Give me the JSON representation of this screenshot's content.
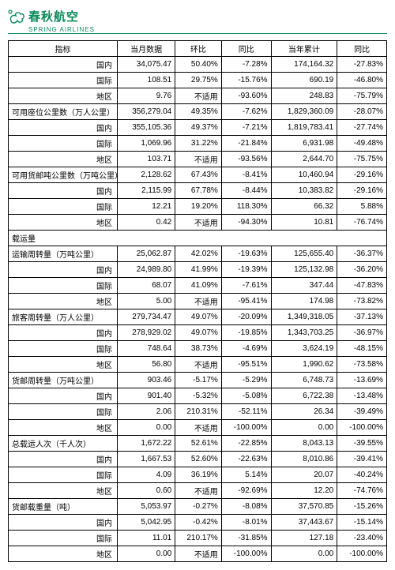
{
  "brand": {
    "cn": "春秋航空",
    "en": "SPRING AIRLINES",
    "color": "#0a8a5a"
  },
  "headers": [
    "指标",
    "当月数据",
    "环比",
    "同比",
    "当年累计",
    "同比"
  ],
  "na": "不适用",
  "subs": [
    "国内",
    "国际",
    "地区"
  ],
  "sections": [
    {
      "title": null,
      "rows": [
        {
          "sub": "国内",
          "v": [
            "34,075.47",
            "50.40%",
            "-7.28%",
            "174,164.32",
            "-27.83%"
          ]
        },
        {
          "sub": "国际",
          "v": [
            "108.51",
            "29.75%",
            "-15.76%",
            "690.19",
            "-46.80%"
          ]
        },
        {
          "sub": "地区",
          "v": [
            "9.76",
            "不适用",
            "-93.60%",
            "248.83",
            "-75.79%"
          ]
        }
      ]
    },
    {
      "title": "可用座位公里数（万人公里）",
      "titleRow": [
        "356,279.04",
        "49.35%",
        "-7.62%",
        "1,829,360.09",
        "-28.07%"
      ],
      "rows": [
        {
          "sub": "国内",
          "v": [
            "355,105.36",
            "49.37%",
            "-7.21%",
            "1,819,783.41",
            "-27.74%"
          ]
        },
        {
          "sub": "国际",
          "v": [
            "1,069.96",
            "31.22%",
            "-21.84%",
            "6,931.98",
            "-49.48%"
          ]
        },
        {
          "sub": "地区",
          "v": [
            "103.71",
            "不适用",
            "-93.56%",
            "2,644.70",
            "-75.75%"
          ]
        }
      ]
    },
    {
      "title": "可用货邮吨公里数（万吨公里）",
      "titleRow": [
        "2,128.62",
        "67.43%",
        "-8.41%",
        "10,460.94",
        "-29.16%"
      ],
      "rows": [
        {
          "sub": "国内",
          "v": [
            "2,115.99",
            "67.78%",
            "-8.44%",
            "10,383.82",
            "-29.16%"
          ]
        },
        {
          "sub": "国际",
          "v": [
            "12.21",
            "19.20%",
            "118.30%",
            "66.32",
            "5.88%"
          ]
        },
        {
          "sub": "地区",
          "v": [
            "0.42",
            "不适用",
            "-94.30%",
            "10.81",
            "-76.74%"
          ]
        }
      ]
    },
    {
      "title": "载运量",
      "blank": true
    },
    {
      "title": "运输周转量（万吨公里）",
      "titleRow": [
        "25,062.87",
        "42.02%",
        "-19.63%",
        "125,655.40",
        "-36.37%"
      ],
      "rows": [
        {
          "sub": "国内",
          "v": [
            "24,989.80",
            "41.99%",
            "-19.39%",
            "125,132.98",
            "-36.20%"
          ]
        },
        {
          "sub": "国际",
          "v": [
            "68.07",
            "41.09%",
            "-7.61%",
            "347.44",
            "-47.83%"
          ]
        },
        {
          "sub": "地区",
          "v": [
            "5.00",
            "不适用",
            "-95.41%",
            "174.98",
            "-73.82%"
          ]
        }
      ]
    },
    {
      "title": "旅客周转量（万人公里）",
      "titleRow": [
        "279,734.47",
        "49.07%",
        "-20.09%",
        "1,349,318.05",
        "-37.13%"
      ],
      "rows": [
        {
          "sub": "国内",
          "v": [
            "278,929.02",
            "49.07%",
            "-19.85%",
            "1,343,703.25",
            "-36.97%"
          ]
        },
        {
          "sub": "国际",
          "v": [
            "748.64",
            "38.73%",
            "-4.69%",
            "3,624.19",
            "-48.15%"
          ]
        },
        {
          "sub": "地区",
          "v": [
            "56.80",
            "不适用",
            "-95.51%",
            "1,990.62",
            "-73.58%"
          ]
        }
      ]
    },
    {
      "title": "货邮周转量（万吨公里）",
      "titleRow": [
        "903.46",
        "-5.17%",
        "-5.29%",
        "6,748.73",
        "-13.69%"
      ],
      "rows": [
        {
          "sub": "国内",
          "v": [
            "901.40",
            "-5.32%",
            "-5.08%",
            "6,722.38",
            "-13.48%"
          ]
        },
        {
          "sub": "国际",
          "v": [
            "2.06",
            "210.31%",
            "-52.11%",
            "26.34",
            "-39.49%"
          ]
        },
        {
          "sub": "地区",
          "v": [
            "0.00",
            "不适用",
            "-100.00%",
            "0.00",
            "-100.00%"
          ]
        }
      ]
    },
    {
      "title": "总载运人次（千人次）",
      "titleRow": [
        "1,672.22",
        "52.61%",
        "-22.85%",
        "8,043.13",
        "-39.55%"
      ],
      "rows": [
        {
          "sub": "国内",
          "v": [
            "1,667.53",
            "52.60%",
            "-22.63%",
            "8,010.86",
            "-39.41%"
          ]
        },
        {
          "sub": "国际",
          "v": [
            "4.09",
            "36.19%",
            "5.14%",
            "20.07",
            "-40.24%"
          ]
        },
        {
          "sub": "地区",
          "v": [
            "0.60",
            "不适用",
            "-92.69%",
            "12.20",
            "-74.76%"
          ]
        }
      ]
    },
    {
      "title": "货邮载重量（吨）",
      "titleRow": [
        "5,053.97",
        "-0.27%",
        "-8.08%",
        "37,570.85",
        "-15.26%"
      ],
      "rows": [
        {
          "sub": "国内",
          "v": [
            "5,042.95",
            "-0.42%",
            "-8.01%",
            "37,443.67",
            "-15.14%"
          ]
        },
        {
          "sub": "国际",
          "v": [
            "11.01",
            "210.17%",
            "-31.85%",
            "127.18",
            "-23.40%"
          ]
        },
        {
          "sub": "地区",
          "v": [
            "0.00",
            "不适用",
            "-100.00%",
            "0.00",
            "-100.00%"
          ]
        }
      ]
    }
  ]
}
